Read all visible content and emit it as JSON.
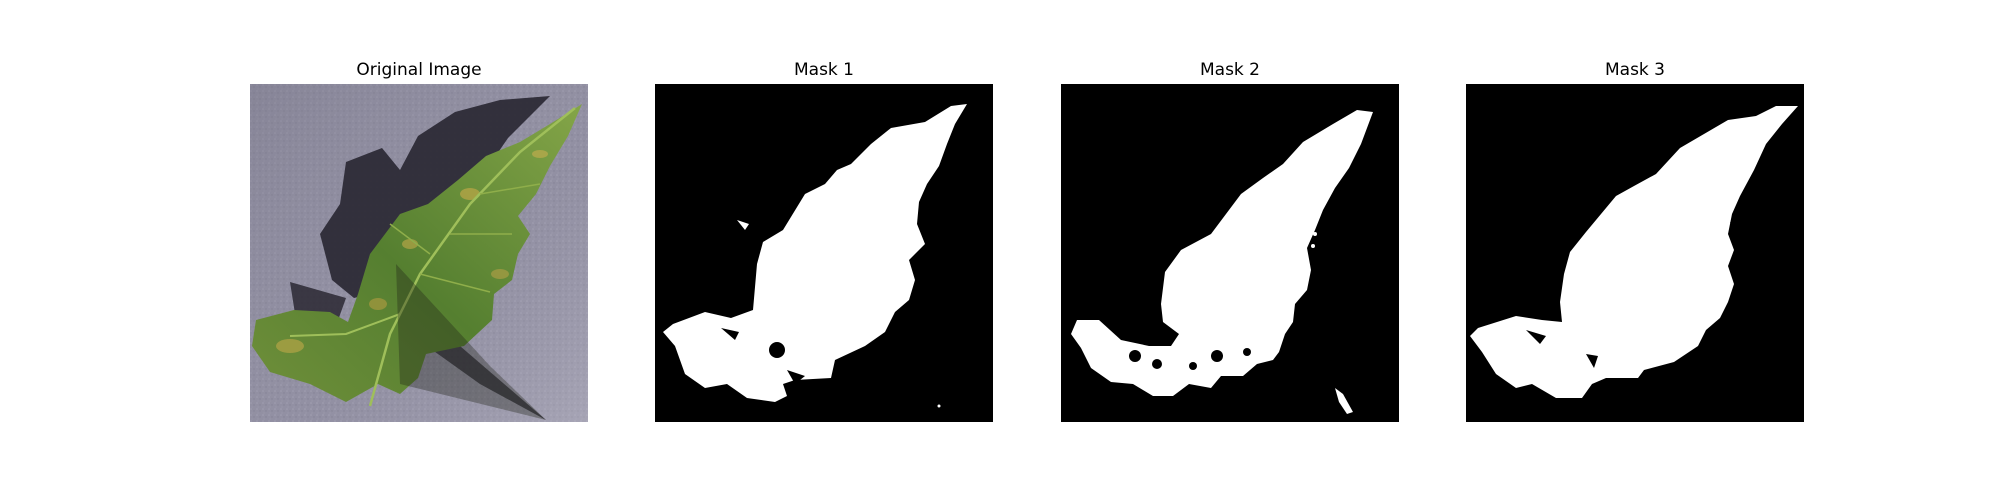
{
  "panels": [
    {
      "title": "Original Image"
    },
    {
      "title": "Mask 1"
    },
    {
      "title": "Mask 2"
    },
    {
      "title": "Mask 3"
    }
  ],
  "colors": {
    "background": "#8e8c9e",
    "leaf_dark": "#3b5a22",
    "leaf_mid": "#5d8a34",
    "leaf_light": "#8fae4a",
    "leaf_yellow": "#b7a84a",
    "shadow": "#2b2a33",
    "mask_bg": "#000000",
    "mask_fg": "#ffffff"
  }
}
